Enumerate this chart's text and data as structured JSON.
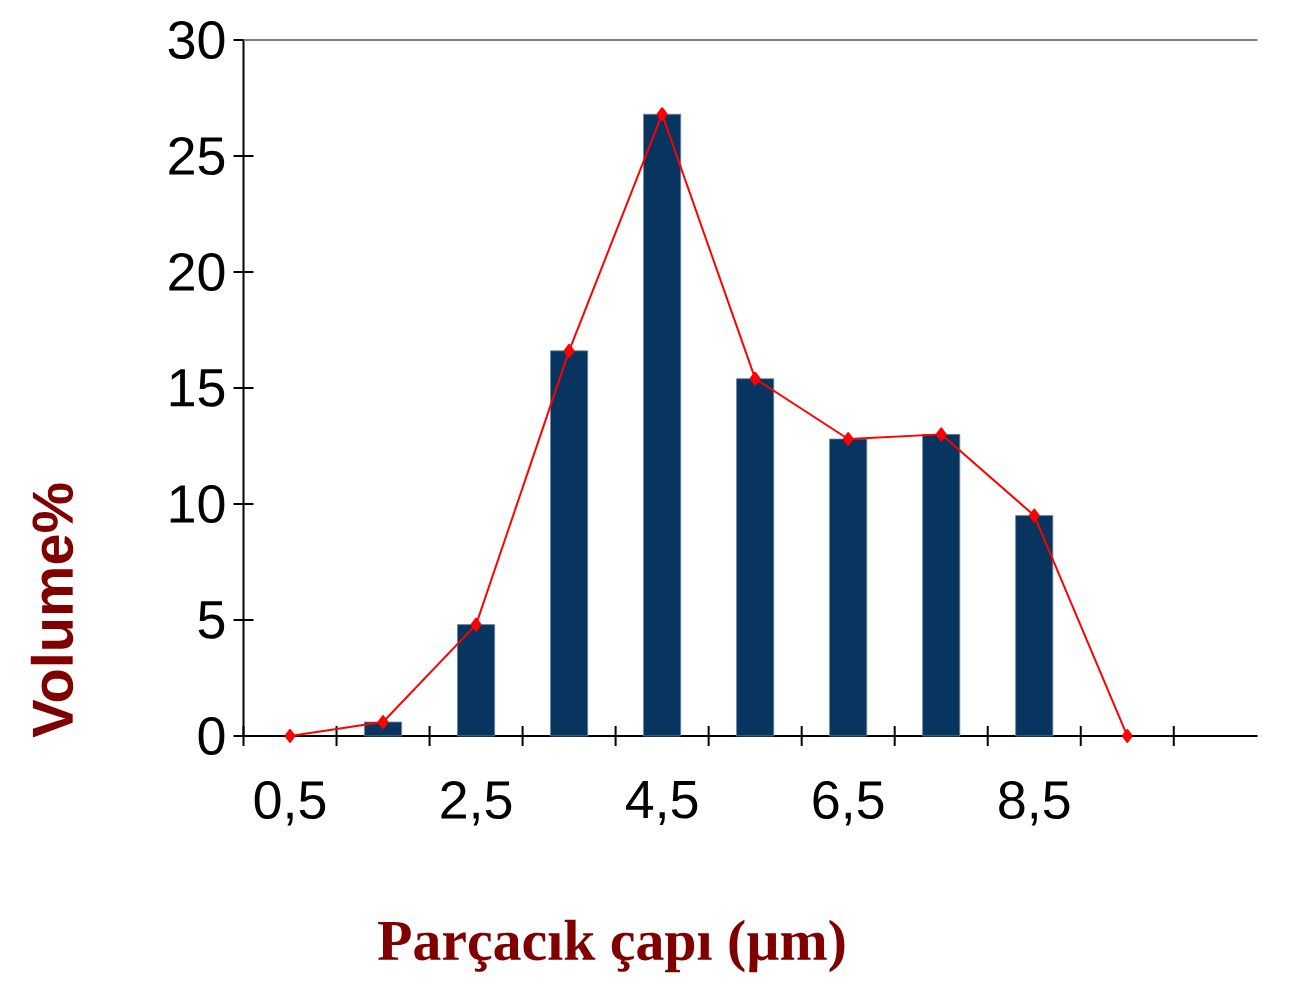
{
  "chart_data": {
    "type": "bar",
    "xlabel": "Parçacık çapı (µm)",
    "ylabel": "Volume%",
    "categories": [
      "0,5",
      null,
      "2,5",
      null,
      "4,5",
      null,
      "6,5",
      null,
      "8,5",
      null
    ],
    "ylim": [
      0,
      30
    ],
    "yticks": [
      0,
      5,
      10,
      15,
      20,
      25,
      30
    ],
    "series": [
      {
        "color": "#08355f",
        "values": [
          null,
          0.6,
          4.8,
          16.6,
          26.8,
          15.4,
          12.8,
          13.0,
          9.5,
          null
        ]
      },
      {
        "type": "line",
        "color": "#ff0000",
        "marker": "diamond",
        "values": [
          0,
          0.6,
          4.8,
          16.6,
          26.8,
          15.4,
          12.8,
          13.0,
          9.5,
          0
        ]
      }
    ]
  }
}
